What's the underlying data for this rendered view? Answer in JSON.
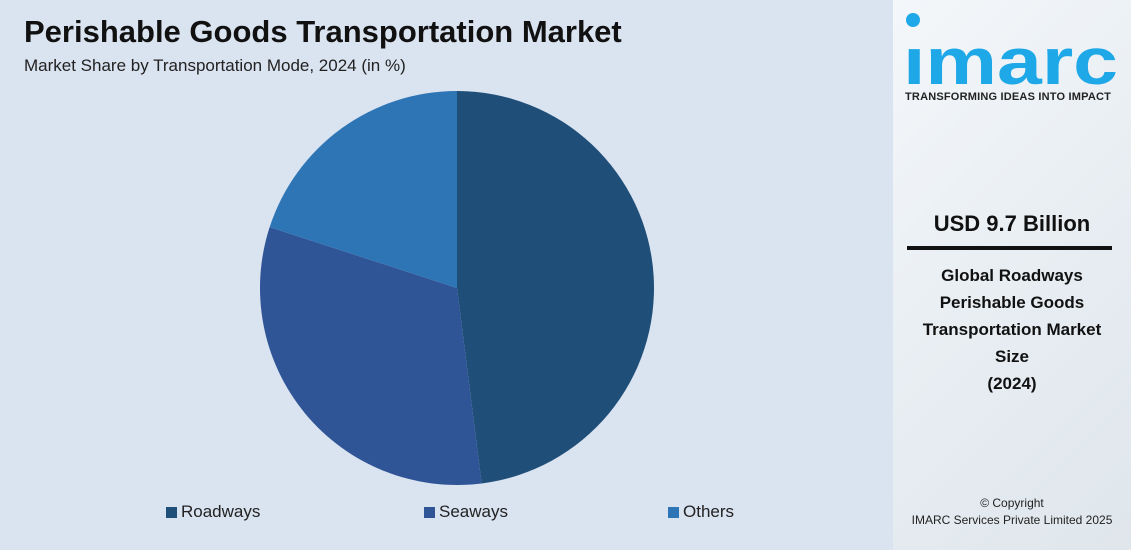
{
  "chart_data": {
    "type": "pie",
    "title": "Perishable Goods Transportation Market",
    "subtitle": "Market Share by Transportation Mode, 2024 (in %)",
    "categories": [
      "Roadways",
      "Seaways",
      "Others"
    ],
    "values": [
      48,
      32,
      20
    ],
    "colors": [
      "#1f4e79",
      "#2f5597",
      "#2e75b6"
    ],
    "start_angle_deg": 0,
    "direction": "clockwise",
    "legend": "bottom"
  },
  "side": {
    "logo_text": "imarc",
    "tagline": "TRANSFORMING IDEAS INTO IMPACT",
    "value": "USD 9.7 Billion",
    "description_lines": [
      "Global Roadways",
      "Perishable Goods",
      "Transportation Market",
      "Size",
      "(2024)"
    ],
    "copyright": "© Copyright",
    "company": "IMARC Services Private Limited 2025",
    "brand_color": "#1fa8e8"
  }
}
